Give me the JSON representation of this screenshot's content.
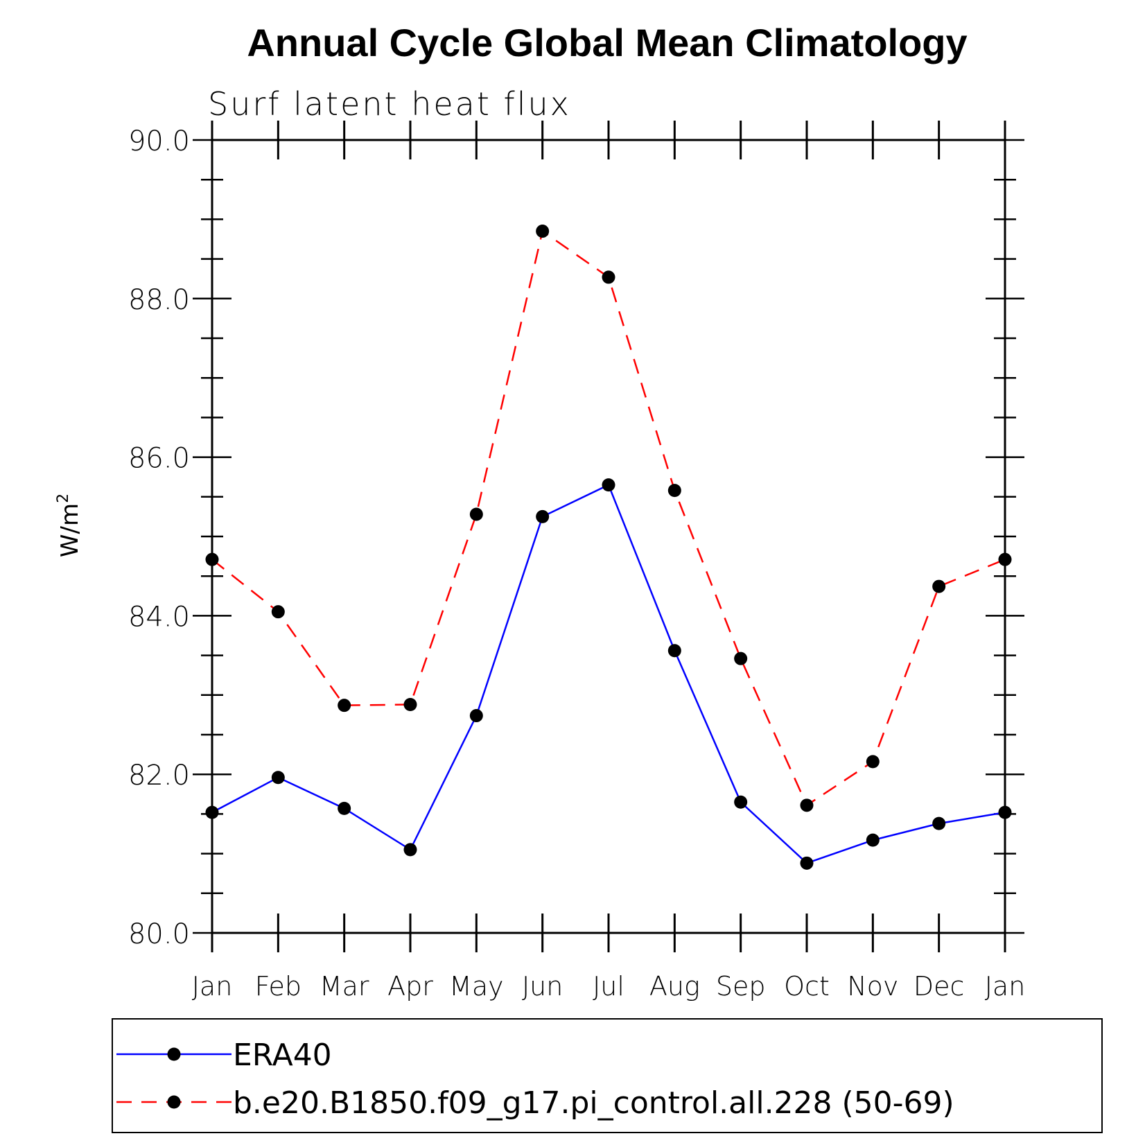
{
  "colors": {
    "era40": "#0000ff",
    "model": "#ff0000",
    "marker": "#000000",
    "axis": "#000000"
  },
  "chart_data": {
    "type": "line",
    "title": "Annual Cycle Global Mean Climatology",
    "subtitle": "Surf latent heat flux",
    "ylabel": "W/m",
    "ylabel_superscript": "2",
    "xlabel": "",
    "categories": [
      "Jan",
      "Feb",
      "Mar",
      "Apr",
      "May",
      "Jun",
      "Jul",
      "Aug",
      "Sep",
      "Oct",
      "Nov",
      "Dec",
      "Jan"
    ],
    "ylim": [
      80.0,
      90.0
    ],
    "yticks": [
      "80.0",
      "82.0",
      "84.0",
      "86.0",
      "88.0",
      "90.0"
    ],
    "grid": false,
    "legend_position": "bottom",
    "series": [
      {
        "name": "ERA40",
        "line_style": "solid",
        "values": [
          81.52,
          81.96,
          81.57,
          81.05,
          82.74,
          85.25,
          85.65,
          83.56,
          81.65,
          80.88,
          81.17,
          81.38,
          81.52
        ]
      },
      {
        "name": "b.e20.B1850.f09_g17.pi_control.all.228 (50-69)",
        "line_style": "dashed",
        "values": [
          84.71,
          84.05,
          82.87,
          82.88,
          85.28,
          88.85,
          88.27,
          85.58,
          83.46,
          81.61,
          82.16,
          84.37,
          84.71
        ]
      }
    ]
  }
}
